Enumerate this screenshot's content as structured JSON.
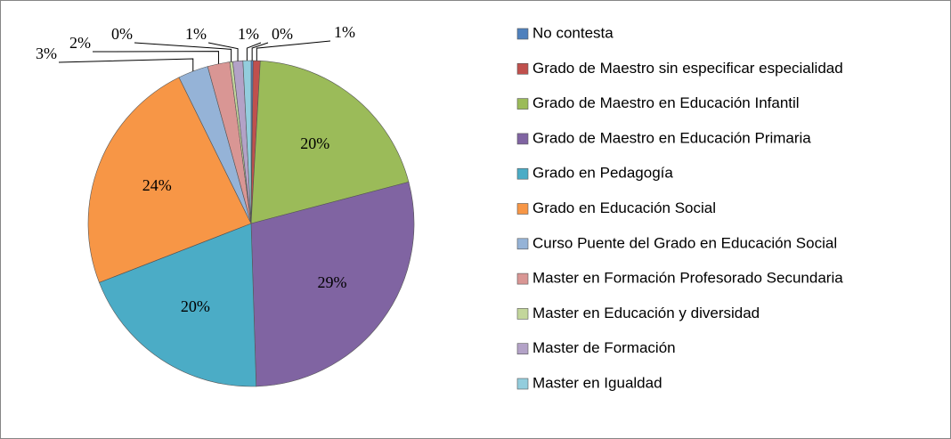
{
  "chart_data": {
    "type": "pie",
    "categories": [
      "No contesta",
      "Grado de Maestro sin especificar especialidad",
      "Grado de Maestro en Educación Infantil",
      "Grado de Maestro en Educación Primaria",
      "Grado en Pedagogía",
      "Grado en Educación Social",
      "Curso Puente del Grado en Educación Social",
      "Master en Formación Profesorado Secundaria",
      "Master en Educación y diversidad",
      "Master de Formación",
      "Master en Igualdad"
    ],
    "values": [
      0.2,
      0.7,
      20.0,
      28.6,
      19.6,
      23.6,
      3.0,
      2.2,
      0.3,
      1.0,
      0.8
    ],
    "value_labels": [
      "0%",
      "1%",
      "20%",
      "29%",
      "20%",
      "24%",
      "3%",
      "2%",
      "0%",
      "1%",
      "1%"
    ],
    "colors": [
      "#4f81bd",
      "#c0504d",
      "#9bbb59",
      "#8064a2",
      "#4bacc6",
      "#f79646",
      "#95b3d7",
      "#d99694",
      "#c3d69b",
      "#b3a2c7",
      "#93cddd"
    ],
    "legend": "right"
  }
}
